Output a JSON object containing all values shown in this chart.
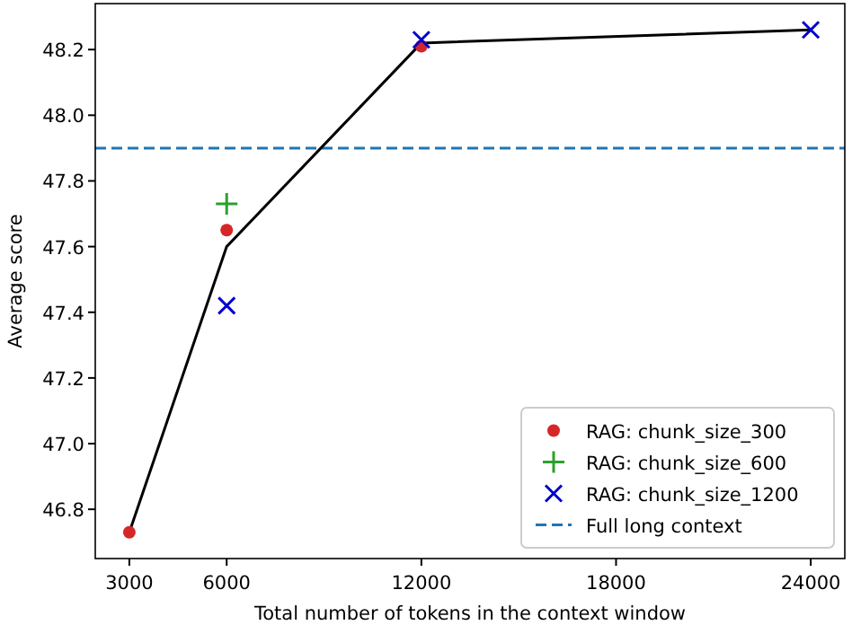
{
  "chart_data": {
    "type": "scatter",
    "xlabel": "Total number of tokens in the context window",
    "ylabel": "Average score",
    "xlim": [
      1950,
      25050
    ],
    "xticks": [
      3000,
      6000,
      12000,
      18000,
      24000
    ],
    "ylim": [
      46.65,
      48.34
    ],
    "yticks": [
      {
        "value": 46.8,
        "label": "46.8"
      },
      {
        "value": 47.0,
        "label": "47.0"
      },
      {
        "value": 47.2,
        "label": "47.2"
      },
      {
        "value": 47.4,
        "label": "47.4"
      },
      {
        "value": 47.6,
        "label": "47.6"
      },
      {
        "value": 47.8,
        "label": "47.8"
      },
      {
        "value": 48.0,
        "label": "48.0"
      },
      {
        "value": 48.2,
        "label": "48.2"
      }
    ],
    "series": [
      {
        "type": "line",
        "color": "#000000",
        "x": [
          3000,
          6000,
          12000,
          24000
        ],
        "values": [
          46.73,
          47.6,
          48.22,
          48.26
        ],
        "marker": "none"
      },
      {
        "name": "RAG: chunk_size_300",
        "color": "#d62728",
        "x": [
          3000,
          6000,
          12000
        ],
        "values": [
          46.73,
          47.65,
          48.21
        ],
        "marker": "circle"
      },
      {
        "name": "RAG: chunk_size_600",
        "color": "#2ca02c",
        "x": [
          6000
        ],
        "values": [
          47.73
        ],
        "marker": "cross"
      },
      {
        "name": "RAG: chunk_size_1200",
        "color": "#0000cc",
        "x": [
          6000,
          12000,
          24000
        ],
        "values": [
          47.42,
          48.23,
          48.26
        ],
        "marker": "x"
      }
    ],
    "ref_lines": [
      {
        "axis": "y",
        "value": 47.9,
        "label": "Full long context",
        "color": "#1f77b4",
        "line_style": "dashed"
      }
    ],
    "legend": "bottom right",
    "grid": false
  }
}
